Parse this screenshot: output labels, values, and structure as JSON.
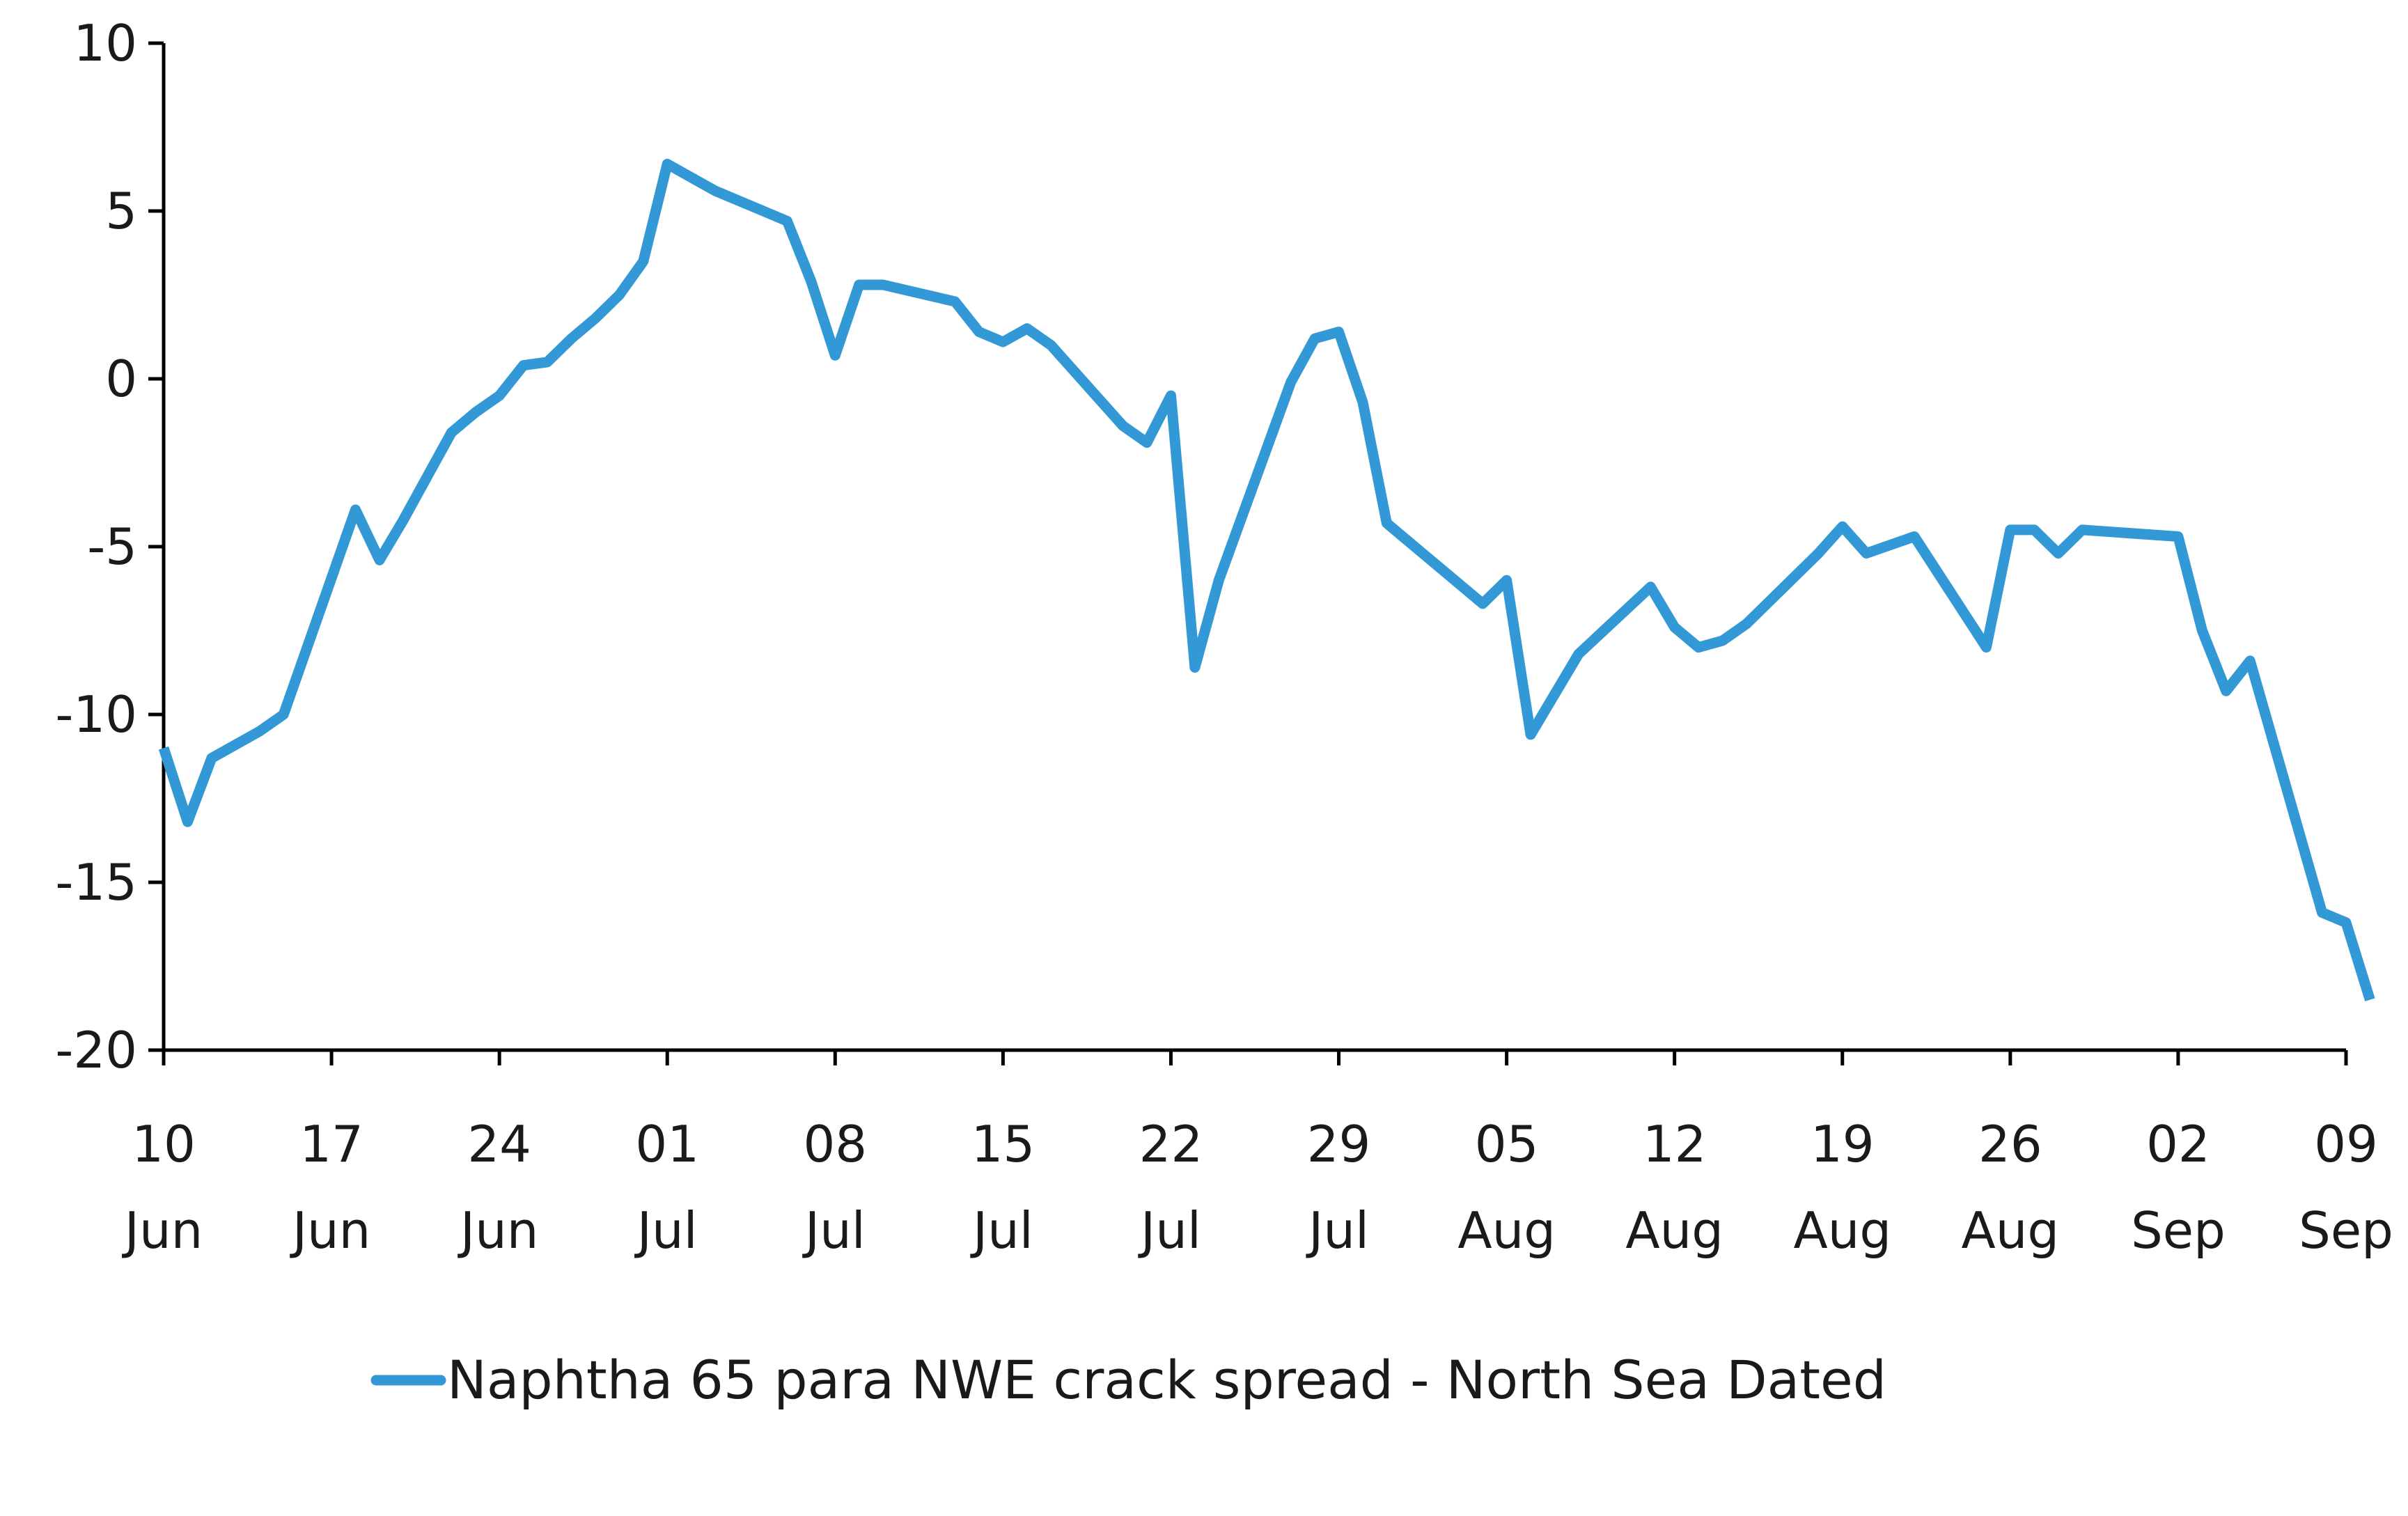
{
  "chart_data": {
    "type": "line",
    "title": "",
    "xlabel": "",
    "ylabel": "",
    "ylim": [
      -20,
      10
    ],
    "yticks": [
      10,
      5,
      0,
      -5,
      -10,
      -15,
      -20
    ],
    "xlim": [
      "2024-06-10",
      "2024-09-09"
    ],
    "xtick_labels": [
      {
        "date": "2024-06-10",
        "day": "10",
        "month": "Jun"
      },
      {
        "date": "2024-06-17",
        "day": "17",
        "month": "Jun"
      },
      {
        "date": "2024-06-24",
        "day": "24",
        "month": "Jun"
      },
      {
        "date": "2024-07-01",
        "day": "01",
        "month": "Jul"
      },
      {
        "date": "2024-07-08",
        "day": "08",
        "month": "Jul"
      },
      {
        "date": "2024-07-15",
        "day": "15",
        "month": "Jul"
      },
      {
        "date": "2024-07-22",
        "day": "22",
        "month": "Jul"
      },
      {
        "date": "2024-07-29",
        "day": "29",
        "month": "Jul"
      },
      {
        "date": "2024-08-05",
        "day": "05",
        "month": "Aug"
      },
      {
        "date": "2024-08-12",
        "day": "12",
        "month": "Aug"
      },
      {
        "date": "2024-08-19",
        "day": "19",
        "month": "Aug"
      },
      {
        "date": "2024-08-26",
        "day": "26",
        "month": "Aug"
      },
      {
        "date": "2024-09-02",
        "day": "02",
        "month": "Sep"
      },
      {
        "date": "2024-09-09",
        "day": "09",
        "month": "Sep"
      }
    ],
    "grid": false,
    "legend_position": "bottom-center",
    "series": [
      {
        "name": "Naphtha 65 para NWE crack spread - North Sea Dated",
        "color": "#3399d6",
        "points": [
          {
            "x": "2024-06-10",
            "y": -11.0
          },
          {
            "x": "2024-06-11",
            "y": -13.2
          },
          {
            "x": "2024-06-12",
            "y": -11.3
          },
          {
            "x": "2024-06-13",
            "y": -10.9
          },
          {
            "x": "2024-06-14",
            "y": -10.5
          },
          {
            "x": "2024-06-15",
            "y": -10.0
          },
          {
            "x": "2024-06-18",
            "y": -3.9
          },
          {
            "x": "2024-06-19",
            "y": -5.4
          },
          {
            "x": "2024-06-20",
            "y": -4.2
          },
          {
            "x": "2024-06-21",
            "y": -2.9
          },
          {
            "x": "2024-06-22",
            "y": -1.6
          },
          {
            "x": "2024-06-23",
            "y": -1.0
          },
          {
            "x": "2024-06-24",
            "y": -0.5
          },
          {
            "x": "2024-06-25",
            "y": 0.4
          },
          {
            "x": "2024-06-26",
            "y": 0.5
          },
          {
            "x": "2024-06-27",
            "y": 1.2
          },
          {
            "x": "2024-06-28",
            "y": 1.8
          },
          {
            "x": "2024-06-29",
            "y": 2.5
          },
          {
            "x": "2024-06-30",
            "y": 3.5
          },
          {
            "x": "2024-07-01",
            "y": 6.4
          },
          {
            "x": "2024-07-02",
            "y": 6.0
          },
          {
            "x": "2024-07-03",
            "y": 5.6
          },
          {
            "x": "2024-07-05",
            "y": 5.0
          },
          {
            "x": "2024-07-06",
            "y": 4.7
          },
          {
            "x": "2024-07-07",
            "y": 2.9
          },
          {
            "x": "2024-07-08",
            "y": 0.7
          },
          {
            "x": "2024-07-09",
            "y": 2.8
          },
          {
            "x": "2024-07-10",
            "y": 2.8
          },
          {
            "x": "2024-07-13",
            "y": 2.3
          },
          {
            "x": "2024-07-14",
            "y": 1.4
          },
          {
            "x": "2024-07-15",
            "y": 1.1
          },
          {
            "x": "2024-07-16",
            "y": 1.5
          },
          {
            "x": "2024-07-17",
            "y": 1.0
          },
          {
            "x": "2024-07-20",
            "y": -1.4
          },
          {
            "x": "2024-07-21",
            "y": -1.9
          },
          {
            "x": "2024-07-22",
            "y": -0.5
          },
          {
            "x": "2024-07-23",
            "y": -8.6
          },
          {
            "x": "2024-07-24",
            "y": -6.0
          },
          {
            "x": "2024-07-27",
            "y": -0.1
          },
          {
            "x": "2024-07-28",
            "y": 1.2
          },
          {
            "x": "2024-07-29",
            "y": 1.4
          },
          {
            "x": "2024-07-30",
            "y": -0.7
          },
          {
            "x": "2024-07-31",
            "y": -4.3
          },
          {
            "x": "2024-08-04",
            "y": -6.7
          },
          {
            "x": "2024-08-05",
            "y": -6.0
          },
          {
            "x": "2024-08-06",
            "y": -10.6
          },
          {
            "x": "2024-08-08",
            "y": -8.2
          },
          {
            "x": "2024-08-11",
            "y": -6.2
          },
          {
            "x": "2024-08-12",
            "y": -7.4
          },
          {
            "x": "2024-08-13",
            "y": -8.0
          },
          {
            "x": "2024-08-14",
            "y": -7.8
          },
          {
            "x": "2024-08-15",
            "y": -7.3
          },
          {
            "x": "2024-08-18",
            "y": -5.2
          },
          {
            "x": "2024-08-19",
            "y": -4.4
          },
          {
            "x": "2024-08-20",
            "y": -5.2
          },
          {
            "x": "2024-08-22",
            "y": -4.7
          },
          {
            "x": "2024-08-25",
            "y": -8.0
          },
          {
            "x": "2024-08-26",
            "y": -4.5
          },
          {
            "x": "2024-08-27",
            "y": -4.5
          },
          {
            "x": "2024-08-28",
            "y": -5.2
          },
          {
            "x": "2024-08-29",
            "y": -4.5
          },
          {
            "x": "2024-09-02",
            "y": -4.7
          },
          {
            "x": "2024-09-03",
            "y": -7.5
          },
          {
            "x": "2024-09-04",
            "y": -9.3
          },
          {
            "x": "2024-09-05",
            "y": -8.4
          },
          {
            "x": "2024-09-08",
            "y": -15.9
          },
          {
            "x": "2024-09-09",
            "y": -16.2
          },
          {
            "x": "2024-09-10",
            "y": -18.5
          }
        ]
      }
    ]
  }
}
